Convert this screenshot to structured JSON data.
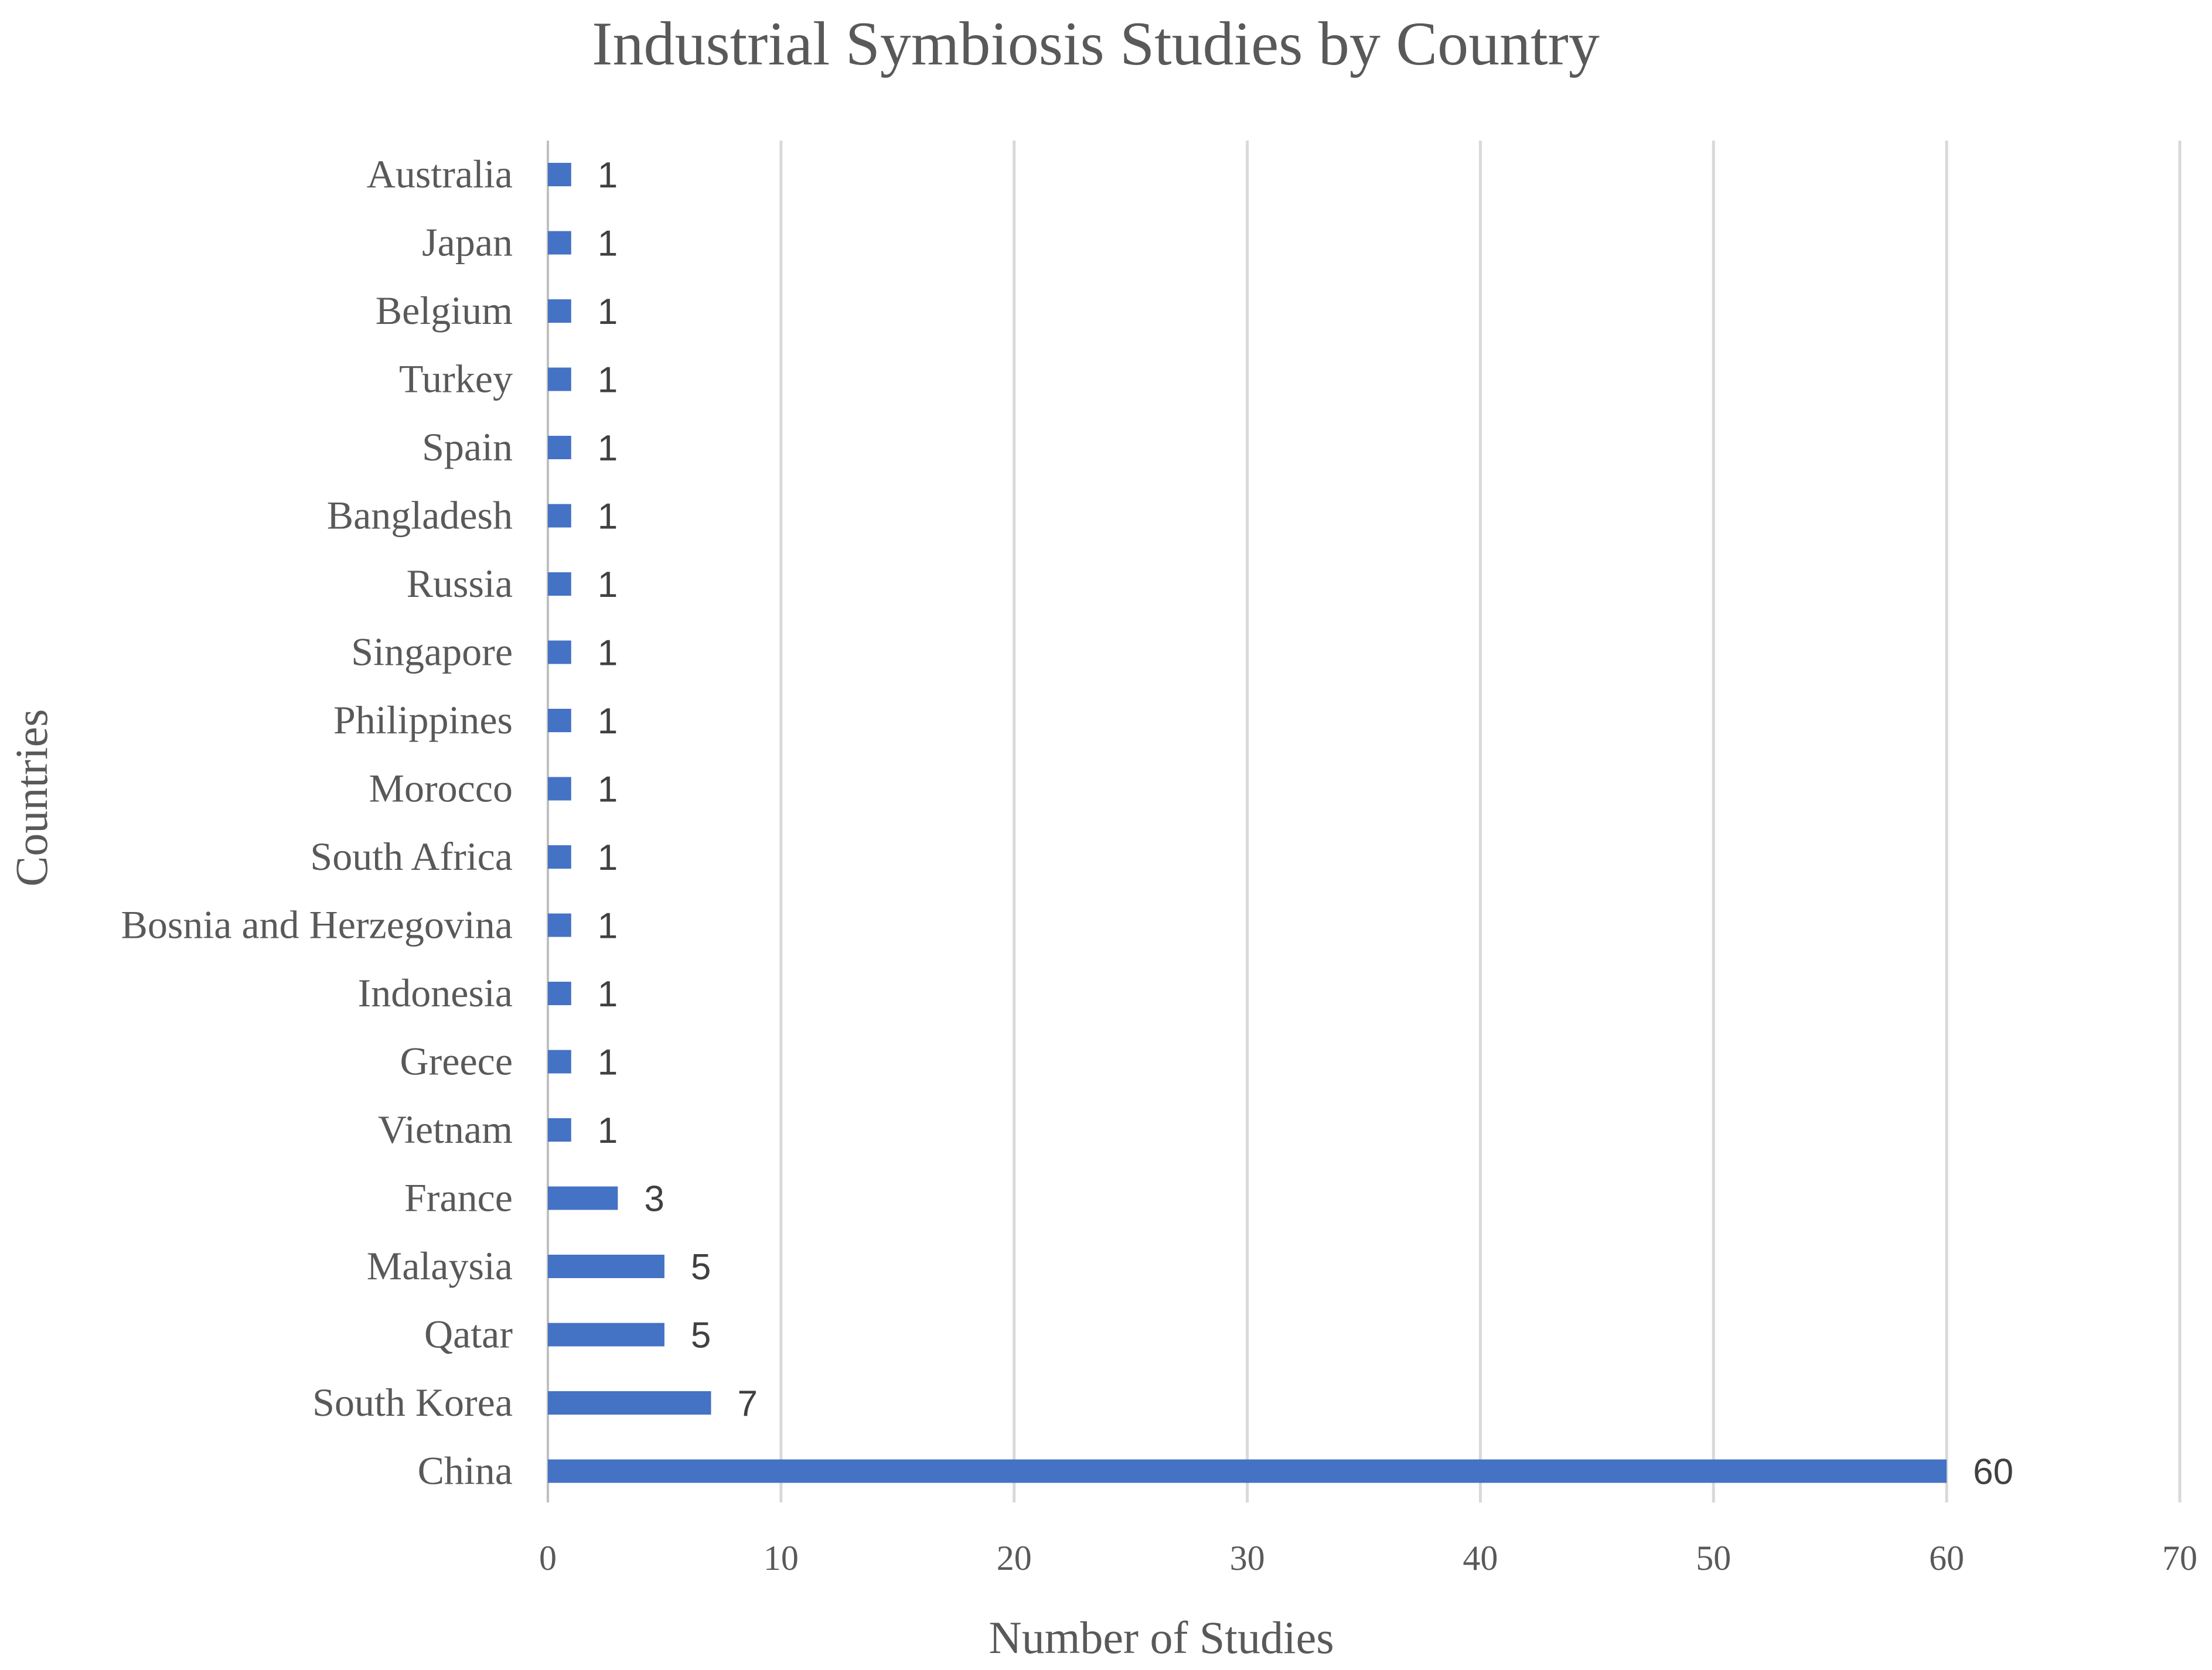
{
  "chart_data": {
    "type": "bar",
    "orientation": "horizontal",
    "title": "Industrial Symbiosis Studies by Country",
    "xlabel": "Number of Studies",
    "ylabel": "Countries",
    "categories": [
      "Australia",
      "Japan",
      "Belgium",
      "Turkey",
      "Spain",
      "Bangladesh",
      "Russia",
      "Singapore",
      "Philippines",
      "Morocco",
      "South Africa",
      "Bosnia and Herzegovina",
      "Indonesia",
      "Greece",
      "Vietnam",
      "France",
      "Malaysia",
      "Qatar",
      "South Korea",
      "China"
    ],
    "values": [
      1,
      1,
      1,
      1,
      1,
      1,
      1,
      1,
      1,
      1,
      1,
      1,
      1,
      1,
      1,
      3,
      5,
      5,
      7,
      60
    ],
    "xlim": [
      0,
      70
    ],
    "xticks": [
      0,
      10,
      20,
      30,
      40,
      50,
      60,
      70
    ],
    "grid": "vertical",
    "legend": "none",
    "data_labels": true,
    "bar_color": "#4472c4",
    "grid_color": "#d9d9d9",
    "text_color": "#595959"
  }
}
